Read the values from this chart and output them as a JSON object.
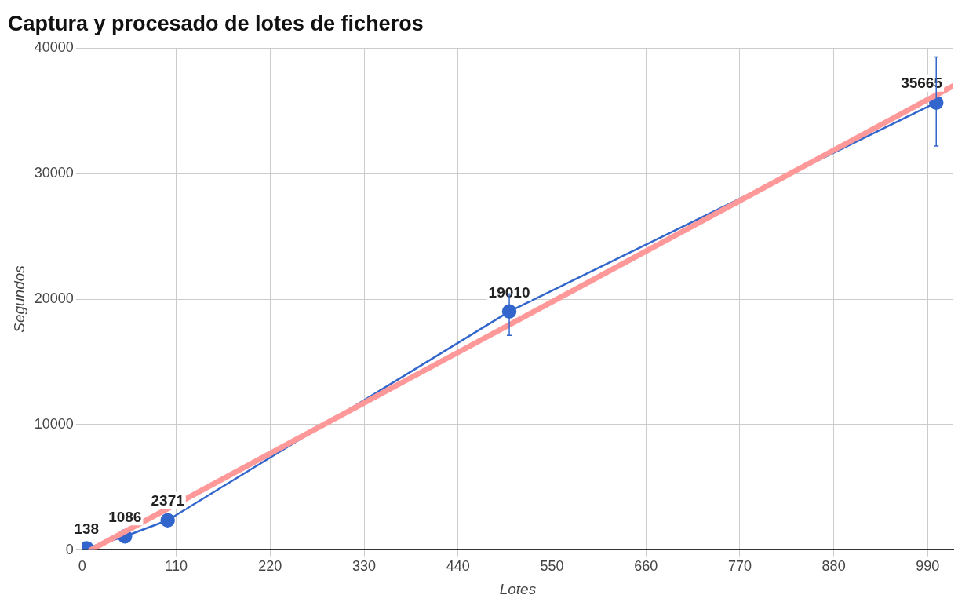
{
  "chart_data": {
    "type": "line",
    "title": "Captura y procesado de lotes de ficheros",
    "xlabel": "Lotes",
    "ylabel": "Segundos",
    "xlim": [
      0,
      1020
    ],
    "xticks": [
      0,
      110,
      220,
      330,
      440,
      550,
      660,
      770,
      880,
      990
    ],
    "ylim": [
      0,
      40000
    ],
    "yticks": [
      0,
      10000,
      20000,
      30000,
      40000
    ],
    "grid": true,
    "legend": false,
    "marker": "circle",
    "line_style": "solid",
    "series": [
      {
        "type": "line",
        "color": "#ff9999",
        "marker": "none",
        "x": [
          10,
          1020
        ],
        "values": [
          0,
          37000
        ]
      },
      {
        "type": "line",
        "color": "#3366cc",
        "x": [
          5,
          50,
          100,
          500,
          1000
        ],
        "values": [
          138,
          1086,
          2371,
          19010,
          35665
        ],
        "value_labels": [
          "138",
          "1086",
          "2371",
          "19010",
          "35665"
        ],
        "errors": [
          null,
          null,
          null,
          [
            17100,
            20400
          ],
          [
            32200,
            39300
          ]
        ]
      }
    ]
  }
}
